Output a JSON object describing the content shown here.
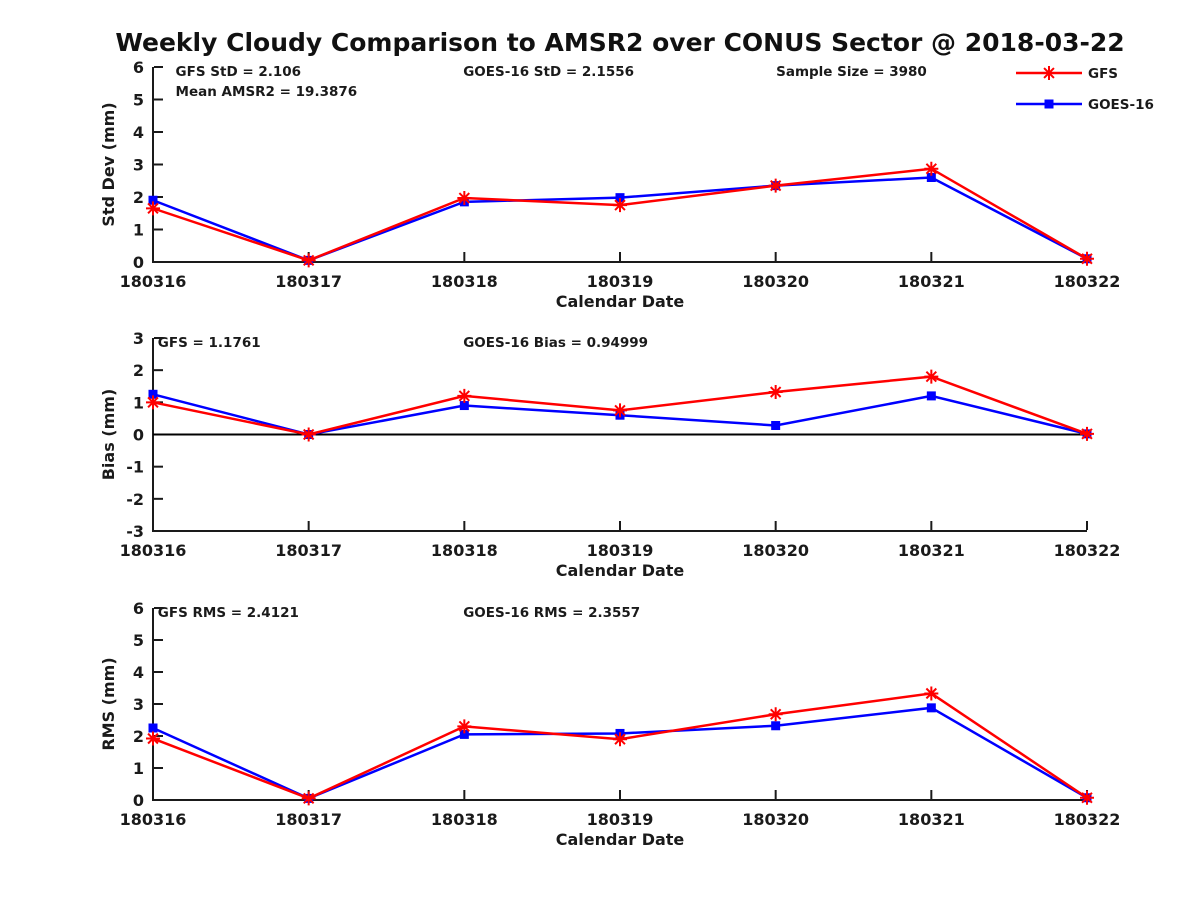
{
  "title": "Weekly Cloudy Comparison to AMSR2 over CONUS Sector @ 2018-03-22",
  "colors": {
    "gfs": "#ff0000",
    "goes16": "#0000ff",
    "axis": "#1a1a1a",
    "text": "#1a1a1a",
    "zero_line": "#000000",
    "background": "#ffffff"
  },
  "legend": {
    "position": "top-right",
    "items": [
      {
        "label": "GFS",
        "color": "#ff0000",
        "marker": "asterisk"
      },
      {
        "label": "GOES-16",
        "color": "#0000ff",
        "marker": "square"
      }
    ]
  },
  "chart_data": [
    {
      "type": "line",
      "name": "std-dev",
      "categories": [
        "180316",
        "180317",
        "180318",
        "180319",
        "180320",
        "180321",
        "180322"
      ],
      "xlabel": "Calendar Date",
      "ylabel": "Std Dev (mm)",
      "ylim": [
        0,
        6
      ],
      "yticks": [
        0,
        1,
        2,
        3,
        4,
        5,
        6
      ],
      "grid": false,
      "zero_line": false,
      "series": [
        {
          "name": "GFS",
          "color": "#ff0000",
          "marker": "asterisk",
          "values": [
            1.65,
            0.05,
            1.97,
            1.75,
            2.35,
            2.87,
            0.1
          ]
        },
        {
          "name": "GOES-16",
          "color": "#0000ff",
          "marker": "square",
          "values": [
            1.9,
            0.05,
            1.85,
            1.98,
            2.35,
            2.6,
            0.1
          ]
        }
      ],
      "annotations": [
        {
          "text": "GFS StD = 2.106",
          "xf": 0.022,
          "row": 0
        },
        {
          "text": "Mean AMSR2 = 19.3876",
          "xf": 0.022,
          "row": 1
        },
        {
          "text": "GOES-16 StD = 2.1556",
          "xf": 0.33,
          "row": 0
        },
        {
          "text": "Sample Size = 3980",
          "xf": 0.665,
          "row": 0
        }
      ]
    },
    {
      "type": "line",
      "name": "bias",
      "categories": [
        "180316",
        "180317",
        "180318",
        "180319",
        "180320",
        "180321",
        "180322"
      ],
      "xlabel": "Calendar Date",
      "ylabel": "Bias (mm)",
      "ylim": [
        -3,
        3
      ],
      "yticks": [
        -3,
        -2,
        -1,
        0,
        1,
        2,
        3
      ],
      "grid": false,
      "zero_line": true,
      "series": [
        {
          "name": "GFS",
          "color": "#ff0000",
          "marker": "asterisk",
          "values": [
            1.0,
            0.0,
            1.2,
            0.75,
            1.32,
            1.8,
            0.02
          ]
        },
        {
          "name": "GOES-16",
          "color": "#0000ff",
          "marker": "square",
          "values": [
            1.25,
            0.0,
            0.9,
            0.6,
            0.28,
            1.2,
            0.02
          ]
        }
      ],
      "annotations": [
        {
          "text": "GFS = 1.1761",
          "xf": 0.003,
          "row": 0
        },
        {
          "text": "GOES-16 Bias  = 0.94999",
          "xf": 0.33,
          "row": 0
        }
      ]
    },
    {
      "type": "line",
      "name": "rms",
      "categories": [
        "180316",
        "180317",
        "180318",
        "180319",
        "180320",
        "180321",
        "180322"
      ],
      "xlabel": "Calendar Date",
      "ylabel": "RMS (mm)",
      "ylim": [
        0,
        6
      ],
      "yticks": [
        0,
        1,
        2,
        3,
        4,
        5,
        6
      ],
      "grid": false,
      "zero_line": false,
      "series": [
        {
          "name": "GFS",
          "color": "#ff0000",
          "marker": "asterisk",
          "values": [
            1.92,
            0.05,
            2.3,
            1.9,
            2.68,
            3.33,
            0.07
          ]
        },
        {
          "name": "GOES-16",
          "color": "#0000ff",
          "marker": "square",
          "values": [
            2.25,
            0.05,
            2.05,
            2.08,
            2.32,
            2.88,
            0.07
          ]
        }
      ],
      "annotations": [
        {
          "text": "GFS RMS = 2.4121",
          "xf": 0.003,
          "row": 0
        },
        {
          "text": "GOES-16 RMS = 2.3557",
          "xf": 0.33,
          "row": 0
        }
      ]
    }
  ]
}
